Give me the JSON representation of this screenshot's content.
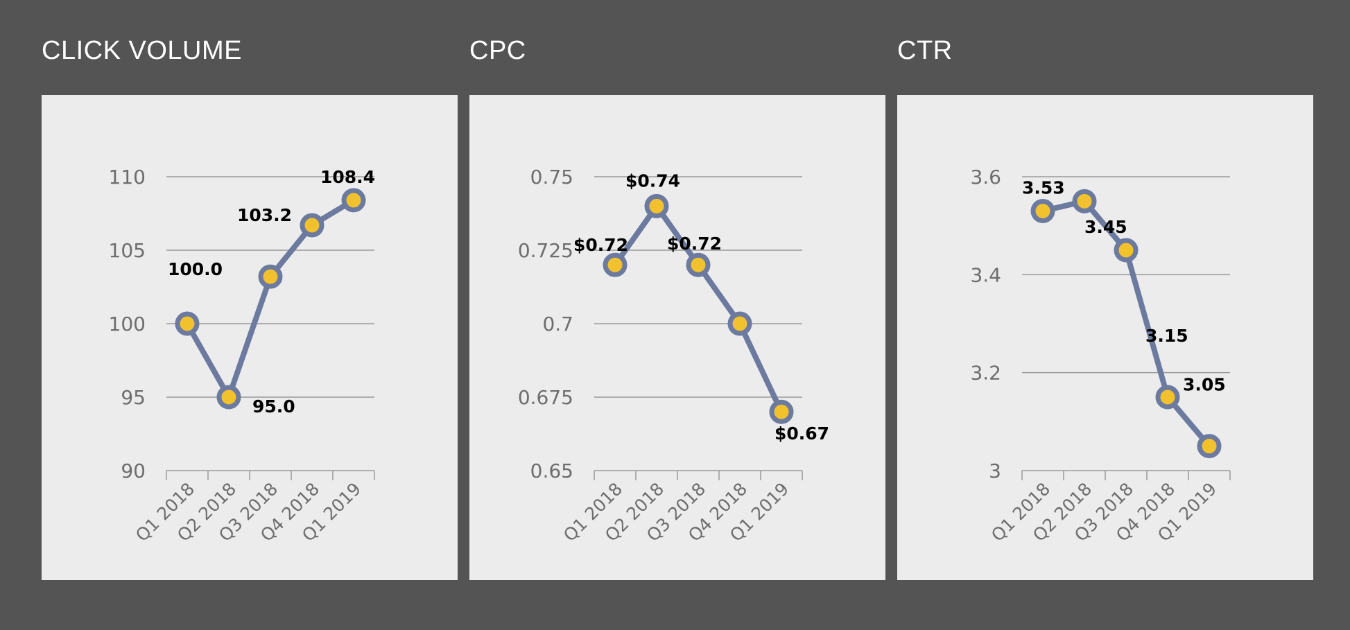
{
  "colors": {
    "background": "#545454",
    "panel": "#ececec",
    "line": "#6b7a9e",
    "marker_fill": "#f2c12e",
    "gridline": "#9a9a9a",
    "tick_text": "#6d6d6d",
    "label_text": "#000000",
    "title_text": "#ffffff"
  },
  "chart_data": [
    {
      "type": "line",
      "title": "CLICK VOLUME",
      "categories": [
        "Q1 2018",
        "Q2 2018",
        "Q3 2018",
        "Q4 2018",
        "Q1 2019"
      ],
      "values": [
        100.0,
        95.0,
        103.2,
        106.7,
        108.4
      ],
      "data_labels": [
        "100.0",
        "95.0",
        "103.2",
        "",
        "108.4"
      ],
      "yticks": [
        90,
        95,
        100,
        105,
        110
      ],
      "ytick_labels": [
        "90",
        "95",
        "100",
        "105",
        "110"
      ],
      "ylim": [
        90,
        110
      ],
      "grid": true
    },
    {
      "type": "line",
      "title": "CPC",
      "categories": [
        "Q1 2018",
        "Q2 2018",
        "Q3 2018",
        "Q4 2018",
        "Q1 2019"
      ],
      "values": [
        0.72,
        0.74,
        0.72,
        0.7,
        0.67
      ],
      "data_labels": [
        "$0.72",
        "$0.74",
        "$0.72",
        "",
        "$0.67"
      ],
      "yticks": [
        0.65,
        0.675,
        0.7,
        0.725,
        0.75
      ],
      "ytick_labels": [
        "0.65",
        "0.675",
        "0.7",
        "0.725",
        "0.75"
      ],
      "ylim": [
        0.65,
        0.75
      ],
      "grid": true
    },
    {
      "type": "line",
      "title": "CTR",
      "categories": [
        "Q1 2018",
        "Q2 2018",
        "Q3 2018",
        "Q4 2018",
        "Q1 2019"
      ],
      "values": [
        3.53,
        3.55,
        3.45,
        3.15,
        3.05
      ],
      "data_labels": [
        "3.53",
        "",
        "3.45",
        "3.15",
        "3.05"
      ],
      "yticks": [
        3.0,
        3.2,
        3.4,
        3.6
      ],
      "ytick_labels": [
        "3",
        "3.2",
        "3.4",
        "3.6"
      ],
      "ylim": [
        3.0,
        3.6
      ],
      "grid": true
    }
  ]
}
